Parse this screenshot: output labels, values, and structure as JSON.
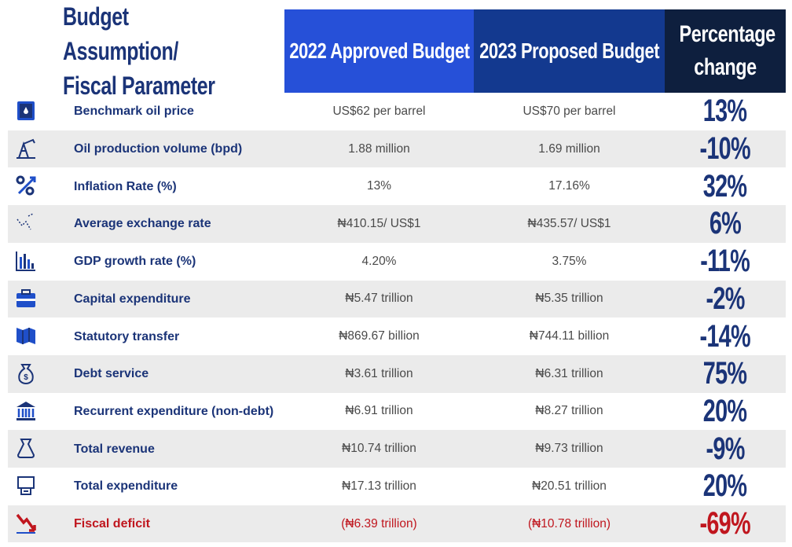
{
  "table": {
    "header": [
      "Budget Assumption/ Fiscal Parameter",
      "2022 Approved Budget",
      "2023 Proposed Budget",
      "Percentage change"
    ],
    "rows": [
      [
        "Benchmark oil price",
        "US$62 per barrel",
        "US$70 per barrel",
        "13%"
      ],
      [
        "Oil production volume (bpd)",
        "1.88 million",
        "1.69 million",
        "-10%"
      ],
      [
        "Inflation Rate (%)",
        "13%",
        "17.16%",
        "32%"
      ],
      [
        "Average exchange rate",
        "₦410.15/ US$1",
        "₦435.57/ US$1",
        "6%"
      ],
      [
        "GDP growth rate (%)",
        "4.20%",
        "3.75%",
        "-11%"
      ],
      [
        "Capital expenditure",
        "₦5.47 trillion",
        "₦5.35 trillion",
        "-2%"
      ],
      [
        "Statutory transfer",
        "₦869.67 billion",
        "₦744.11 billion",
        "-14%"
      ],
      [
        "Debt service",
        "₦3.61 trillion",
        "₦6.31 trillion",
        "75%"
      ],
      [
        "Recurrent expenditure (non-debt)",
        "₦6.91 trillion",
        "₦8.27 trillion",
        "20%"
      ],
      [
        "Total revenue",
        "₦10.74 trillion",
        "₦9.73 trillion",
        "-9%"
      ],
      [
        "Total expenditure",
        "₦17.13 trillion",
        "₦20.51 trillion",
        "20%"
      ],
      [
        "Fiscal deficit",
        "(₦6.39 trillion)",
        "(₦10.78 trillion)",
        "-69%"
      ]
    ]
  }
}
